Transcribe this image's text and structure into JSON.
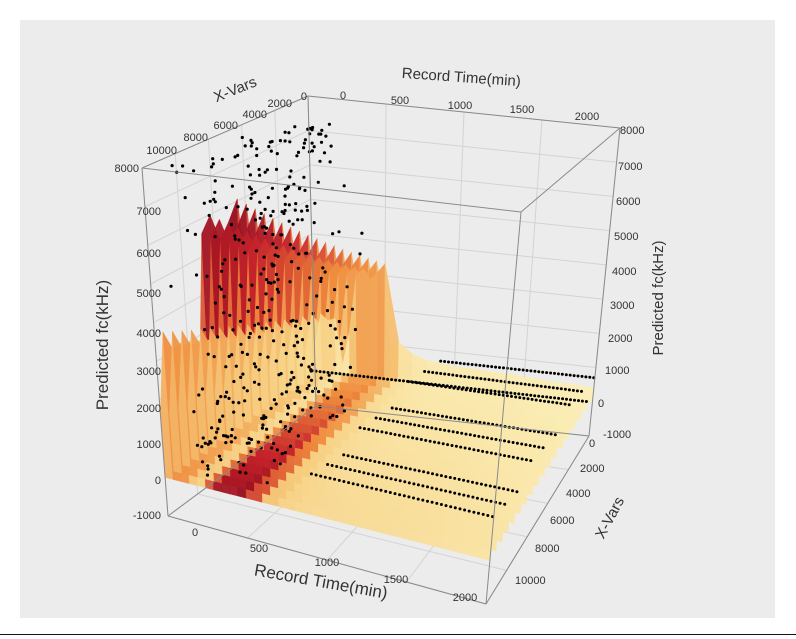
{
  "chart_data": {
    "type": "surface3d",
    "x_axis": {
      "label": "Record Time(min)",
      "ticks": [
        "0",
        "500",
        "1000",
        "1500",
        "2000"
      ],
      "range": [
        0,
        2000
      ]
    },
    "depth_axis": {
      "label": "X-Vars",
      "ticks": [
        "0",
        "2000",
        "4000",
        "6000",
        "8000",
        "10000"
      ],
      "range": [
        0,
        10000
      ]
    },
    "z_axis": {
      "label": "Predicted fc(kHz)",
      "ticks": [
        "-1000",
        "0",
        "1000",
        "2000",
        "3000",
        "4000",
        "5000",
        "6000",
        "7000",
        "8000"
      ],
      "range": [
        -1000,
        8000
      ]
    },
    "surface": {
      "record_time": [
        0,
        50,
        100,
        150,
        200,
        250,
        300,
        350,
        400,
        450,
        500,
        600,
        700,
        800,
        900,
        1000,
        1100,
        1200,
        1300,
        1400,
        1500,
        1600,
        1700,
        1800,
        1900,
        2000
      ],
      "max_fc": [
        1600,
        3800,
        3400,
        3600,
        600,
        2800,
        6500,
        7000,
        6400,
        6900,
        7500,
        2500,
        1800,
        1500,
        1400,
        1300,
        1300,
        1250,
        1200,
        1200,
        1100,
        1100,
        1000,
        1000,
        950,
        900
      ],
      "colormap": [
        "#fdf8c6",
        "#f7cd7e",
        "#f08a3c",
        "#c7242c",
        "#8c0a1c"
      ]
    },
    "scatter_band_fc": [
      7800,
      7500,
      7000,
      6200,
      5600,
      4800,
      4100,
      3400,
      2600,
      1900,
      1400,
      1000,
      600,
      300,
      0
    ],
    "grid": true
  }
}
